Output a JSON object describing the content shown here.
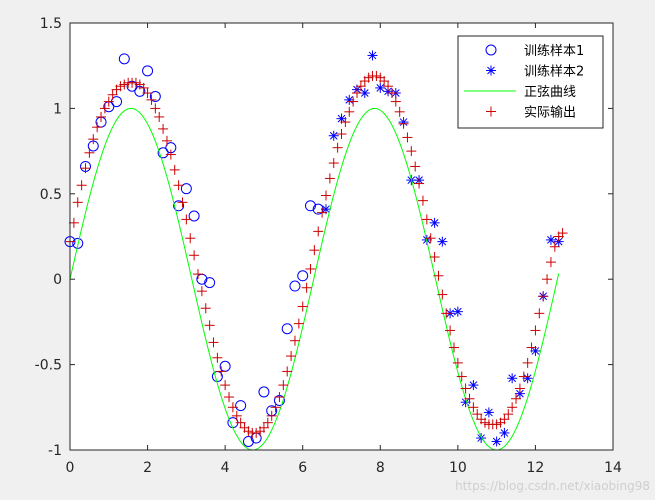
{
  "watermark": "https://blog.csdn.net/xiaobing98",
  "chart_data": {
    "type": "scatter",
    "title": "",
    "xlabel": "",
    "ylabel": "",
    "xlim": [
      0,
      14
    ],
    "ylim": [
      -1,
      1.5
    ],
    "xticks": [
      0,
      2,
      4,
      6,
      8,
      10,
      12,
      14
    ],
    "yticks": [
      -1,
      -0.5,
      0,
      0.5,
      1,
      1.5
    ],
    "xtick_labels": [
      "0",
      "2",
      "4",
      "6",
      "8",
      "10",
      "12",
      "14"
    ],
    "ytick_labels": [
      "-1",
      "-0.5",
      "0",
      "0.5",
      "1",
      "1.5"
    ],
    "grid": false,
    "legend_position": "top-right",
    "series": [
      {
        "name": "训练样本1",
        "marker": "circle",
        "color": "#0000ff",
        "x": [
          0.0,
          0.2,
          0.4,
          0.6,
          0.8,
          1.0,
          1.2,
          1.4,
          1.6,
          1.8,
          2.0,
          2.2,
          2.4,
          2.6,
          2.8,
          3.0,
          3.2,
          3.4,
          3.6,
          3.8,
          4.0,
          4.2,
          4.4,
          4.6,
          4.8,
          5.0,
          5.2,
          5.4,
          5.6,
          5.8,
          6.0,
          6.2,
          6.4
        ],
        "y": [
          0.22,
          0.21,
          0.66,
          0.78,
          0.92,
          1.01,
          1.04,
          1.29,
          1.13,
          1.1,
          1.22,
          1.07,
          0.74,
          0.77,
          0.43,
          0.53,
          0.37,
          0.0,
          -0.02,
          -0.57,
          -0.51,
          -0.84,
          -0.74,
          -0.95,
          -0.93,
          -0.66,
          -0.77,
          -0.71,
          -0.29,
          -0.04,
          0.02,
          0.43,
          0.41
        ]
      },
      {
        "name": "训练样本2",
        "marker": "asterisk",
        "color": "#0000ff",
        "x": [
          6.6,
          6.8,
          7.0,
          7.2,
          7.4,
          7.6,
          7.8,
          8.0,
          8.2,
          8.4,
          8.6,
          8.8,
          9.0,
          9.2,
          9.4,
          9.6,
          9.8,
          10.0,
          10.2,
          10.4,
          10.6,
          10.8,
          11.0,
          11.2,
          11.4,
          11.6,
          11.8,
          12.0,
          12.2,
          12.4,
          12.6
        ],
        "y": [
          0.41,
          0.84,
          0.94,
          1.05,
          1.11,
          1.09,
          1.31,
          1.12,
          1.1,
          1.09,
          0.92,
          0.58,
          0.58,
          0.23,
          0.33,
          0.22,
          -0.2,
          -0.19,
          -0.72,
          -0.62,
          -0.93,
          -0.78,
          -0.95,
          -0.9,
          -0.58,
          -0.67,
          -0.58,
          -0.42,
          -0.1,
          0.23,
          0.22
        ]
      },
      {
        "name": "正弦曲线",
        "marker": "line",
        "color": "#00ff00",
        "function": "sin",
        "domain": [
          0,
          12.6
        ]
      },
      {
        "name": "实际输出",
        "marker": "plus",
        "color": "#cc0000",
        "x": [
          0.0,
          0.1,
          0.2,
          0.3,
          0.4,
          0.5,
          0.6,
          0.7,
          0.8,
          0.9,
          1.0,
          1.1,
          1.2,
          1.3,
          1.4,
          1.5,
          1.6,
          1.7,
          1.8,
          1.9,
          2.0,
          2.1,
          2.2,
          2.3,
          2.4,
          2.5,
          2.6,
          2.7,
          2.8,
          2.9,
          3.0,
          3.1,
          3.2,
          3.3,
          3.4,
          3.5,
          3.6,
          3.7,
          3.8,
          3.9,
          4.0,
          4.1,
          4.2,
          4.3,
          4.4,
          4.5,
          4.6,
          4.7,
          4.8,
          4.9,
          5.0,
          5.1,
          5.2,
          5.3,
          5.4,
          5.5,
          5.6,
          5.7,
          5.8,
          5.9,
          6.0,
          6.1,
          6.2,
          6.3,
          6.4,
          6.5,
          6.6,
          6.7,
          6.8,
          6.9,
          7.0,
          7.1,
          7.2,
          7.3,
          7.4,
          7.5,
          7.6,
          7.7,
          7.8,
          7.9,
          8.0,
          8.1,
          8.2,
          8.3,
          8.4,
          8.5,
          8.6,
          8.7,
          8.8,
          8.9,
          9.0,
          9.1,
          9.2,
          9.3,
          9.4,
          9.5,
          9.6,
          9.7,
          9.8,
          9.9,
          10.0,
          10.1,
          10.2,
          10.3,
          10.4,
          10.5,
          10.6,
          10.7,
          10.8,
          10.9,
          11.0,
          11.1,
          11.2,
          11.3,
          11.4,
          11.5,
          11.6,
          11.7,
          11.8,
          11.9,
          12.0,
          12.1,
          12.2,
          12.3,
          12.4,
          12.5,
          12.6,
          12.7
        ],
        "y": [
          0.22,
          0.33,
          0.45,
          0.55,
          0.65,
          0.74,
          0.82,
          0.89,
          0.95,
          1.0,
          1.04,
          1.08,
          1.11,
          1.13,
          1.14,
          1.15,
          1.15,
          1.15,
          1.14,
          1.12,
          1.09,
          1.05,
          1.0,
          0.95,
          0.88,
          0.81,
          0.73,
          0.64,
          0.55,
          0.45,
          0.35,
          0.24,
          0.14,
          0.03,
          -0.07,
          -0.17,
          -0.27,
          -0.37,
          -0.46,
          -0.54,
          -0.62,
          -0.69,
          -0.75,
          -0.8,
          -0.84,
          -0.87,
          -0.89,
          -0.9,
          -0.9,
          -0.89,
          -0.87,
          -0.84,
          -0.8,
          -0.75,
          -0.69,
          -0.62,
          -0.54,
          -0.45,
          -0.36,
          -0.26,
          -0.16,
          -0.05,
          0.06,
          0.17,
          0.28,
          0.39,
          0.49,
          0.59,
          0.68,
          0.77,
          0.85,
          0.92,
          0.98,
          1.04,
          1.09,
          1.13,
          1.16,
          1.18,
          1.19,
          1.19,
          1.18,
          1.16,
          1.13,
          1.09,
          1.04,
          0.98,
          0.91,
          0.83,
          0.75,
          0.66,
          0.56,
          0.46,
          0.35,
          0.24,
          0.13,
          0.02,
          -0.09,
          -0.2,
          -0.3,
          -0.4,
          -0.49,
          -0.57,
          -0.64,
          -0.7,
          -0.75,
          -0.79,
          -0.82,
          -0.84,
          -0.85,
          -0.85,
          -0.85,
          -0.84,
          -0.82,
          -0.79,
          -0.75,
          -0.7,
          -0.64,
          -0.57,
          -0.49,
          -0.4,
          -0.3,
          -0.2,
          -0.1,
          0.0,
          0.1,
          0.19,
          0.25,
          0.27
        ]
      }
    ]
  }
}
